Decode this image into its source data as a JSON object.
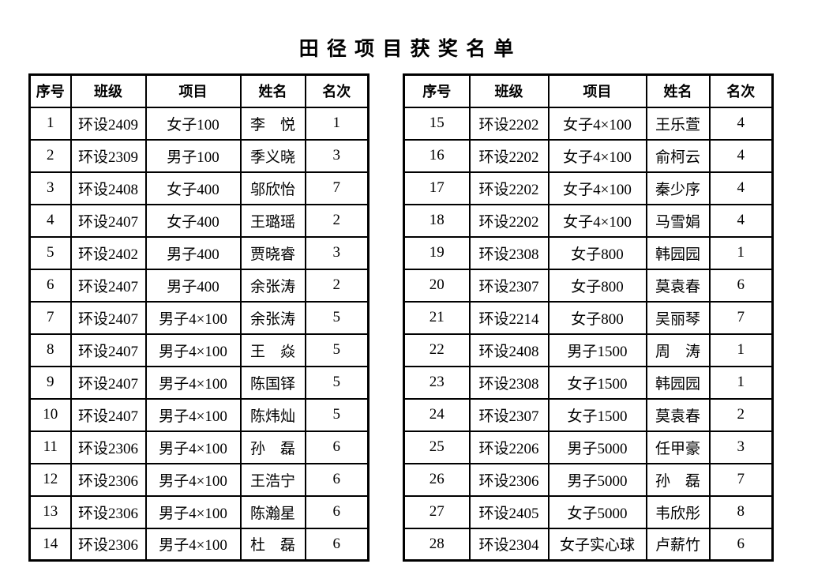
{
  "page": {
    "title": "田 径 项 目 获 奖 名 单",
    "background_color": "#ffffff",
    "text_color": "#000000",
    "border_color": "#000000"
  },
  "columns": [
    "序号",
    "班级",
    "项目",
    "姓名",
    "名次"
  ],
  "tables": [
    {
      "id": "left",
      "rows": [
        [
          "1",
          "环设2409",
          "女子100",
          "李　悦",
          "1"
        ],
        [
          "2",
          "环设2309",
          "男子100",
          "季义晓",
          "3"
        ],
        [
          "3",
          "环设2408",
          "女子400",
          "邬欣怡",
          "7"
        ],
        [
          "4",
          "环设2407",
          "女子400",
          "王璐瑶",
          "2"
        ],
        [
          "5",
          "环设2402",
          "男子400",
          "贾晓睿",
          "3"
        ],
        [
          "6",
          "环设2407",
          "男子400",
          "余张涛",
          "2"
        ],
        [
          "7",
          "环设2407",
          "男子4×100",
          "余张涛",
          "5"
        ],
        [
          "8",
          "环设2407",
          "男子4×100",
          "王　焱",
          "5"
        ],
        [
          "9",
          "环设2407",
          "男子4×100",
          "陈国铎",
          "5"
        ],
        [
          "10",
          "环设2407",
          "男子4×100",
          "陈炜灿",
          "5"
        ],
        [
          "11",
          "环设2306",
          "男子4×100",
          "孙　磊",
          "6"
        ],
        [
          "12",
          "环设2306",
          "男子4×100",
          "王浩宁",
          "6"
        ],
        [
          "13",
          "环设2306",
          "男子4×100",
          "陈瀚星",
          "6"
        ],
        [
          "14",
          "环设2306",
          "男子4×100",
          "杜　磊",
          "6"
        ]
      ]
    },
    {
      "id": "right",
      "rows": [
        [
          "15",
          "环设2202",
          "女子4×100",
          "王乐萱",
          "4"
        ],
        [
          "16",
          "环设2202",
          "女子4×100",
          "俞柯云",
          "4"
        ],
        [
          "17",
          "环设2202",
          "女子4×100",
          "秦少序",
          "4"
        ],
        [
          "18",
          "环设2202",
          "女子4×100",
          "马雪娟",
          "4"
        ],
        [
          "19",
          "环设2308",
          "女子800",
          "韩园园",
          "1"
        ],
        [
          "20",
          "环设2307",
          "女子800",
          "莫袁春",
          "6"
        ],
        [
          "21",
          "环设2214",
          "女子800",
          "吴丽琴",
          "7"
        ],
        [
          "22",
          "环设2408",
          "男子1500",
          "周　涛",
          "1"
        ],
        [
          "23",
          "环设2308",
          "女子1500",
          "韩园园",
          "1"
        ],
        [
          "24",
          "环设2307",
          "女子1500",
          "莫袁春",
          "2"
        ],
        [
          "25",
          "环设2206",
          "男子5000",
          "任甲豪",
          "3"
        ],
        [
          "26",
          "环设2306",
          "男子5000",
          "孙　磊",
          "7"
        ],
        [
          "27",
          "环设2405",
          "女子5000",
          "韦欣彤",
          "8"
        ],
        [
          "28",
          "环设2304",
          "女子实心球",
          "卢薪竹",
          "6"
        ]
      ]
    }
  ]
}
